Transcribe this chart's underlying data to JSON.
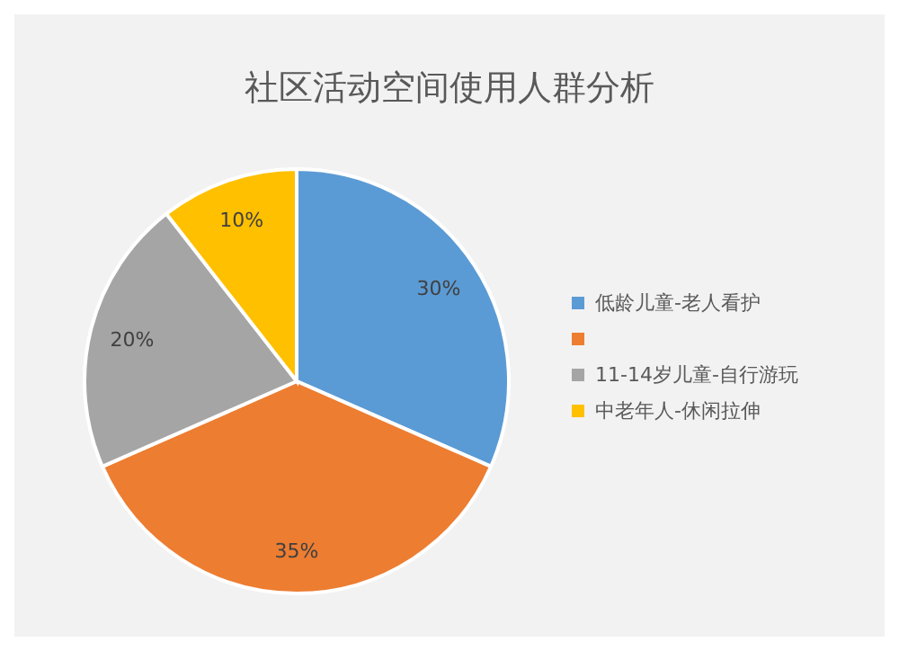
{
  "chart_data": {
    "type": "pie",
    "title": "社区活动空间使用人群分析",
    "categories": [
      "低龄儿童-老人看护",
      null,
      "11-14岁儿童-自行游玩",
      "中老年人-休闲拉伸"
    ],
    "values": [
      30,
      35,
      20,
      10
    ],
    "value_labels": [
      "30%",
      "35%",
      "20%",
      "10%"
    ],
    "colors": [
      "#5b9bd5",
      "#ed7d31",
      "#a5a5a5",
      "#ffc000"
    ],
    "legend": "right"
  }
}
